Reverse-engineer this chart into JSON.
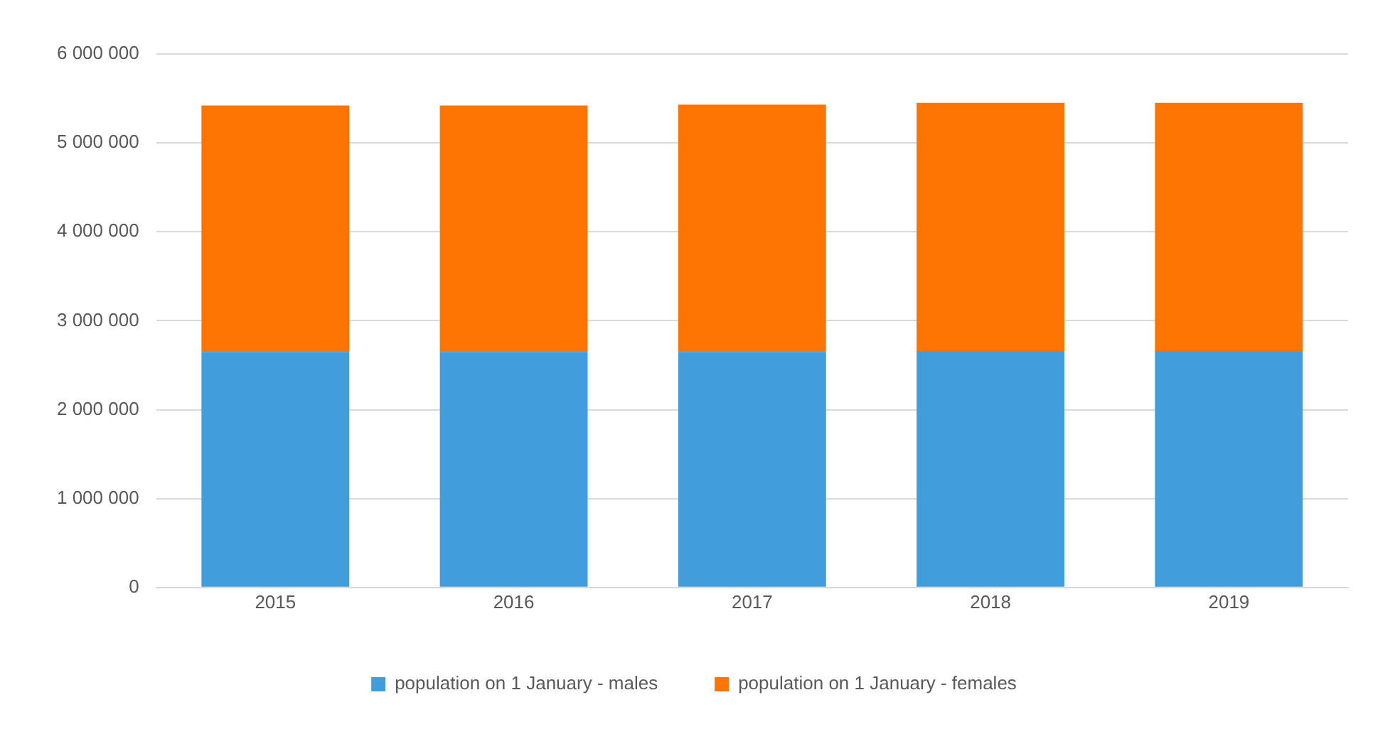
{
  "chart_data": {
    "type": "bar",
    "stacked": true,
    "categories": [
      "2015",
      "2016",
      "2017",
      "2018",
      "2019"
    ],
    "series": [
      {
        "name": "population on 1 January - males",
        "color": "#419ddb",
        "values": [
          2650000,
          2650000,
          2650000,
          2660000,
          2660000
        ]
      },
      {
        "name": "population on 1 January - females",
        "color": "#ff7504",
        "values": [
          2770000,
          2770000,
          2780000,
          2790000,
          2790000
        ]
      }
    ],
    "ylim": [
      0,
      6000000
    ],
    "yticks": [
      {
        "value": 0,
        "label": "0"
      },
      {
        "value": 1000000,
        "label": "1 000 000"
      },
      {
        "value": 2000000,
        "label": "2 000 000"
      },
      {
        "value": 3000000,
        "label": "3 000 000"
      },
      {
        "value": 4000000,
        "label": "4 000 000"
      },
      {
        "value": 5000000,
        "label": "5 000 000"
      },
      {
        "value": 6000000,
        "label": "6 000 000"
      }
    ],
    "grid": "y",
    "legend": "bottom"
  }
}
